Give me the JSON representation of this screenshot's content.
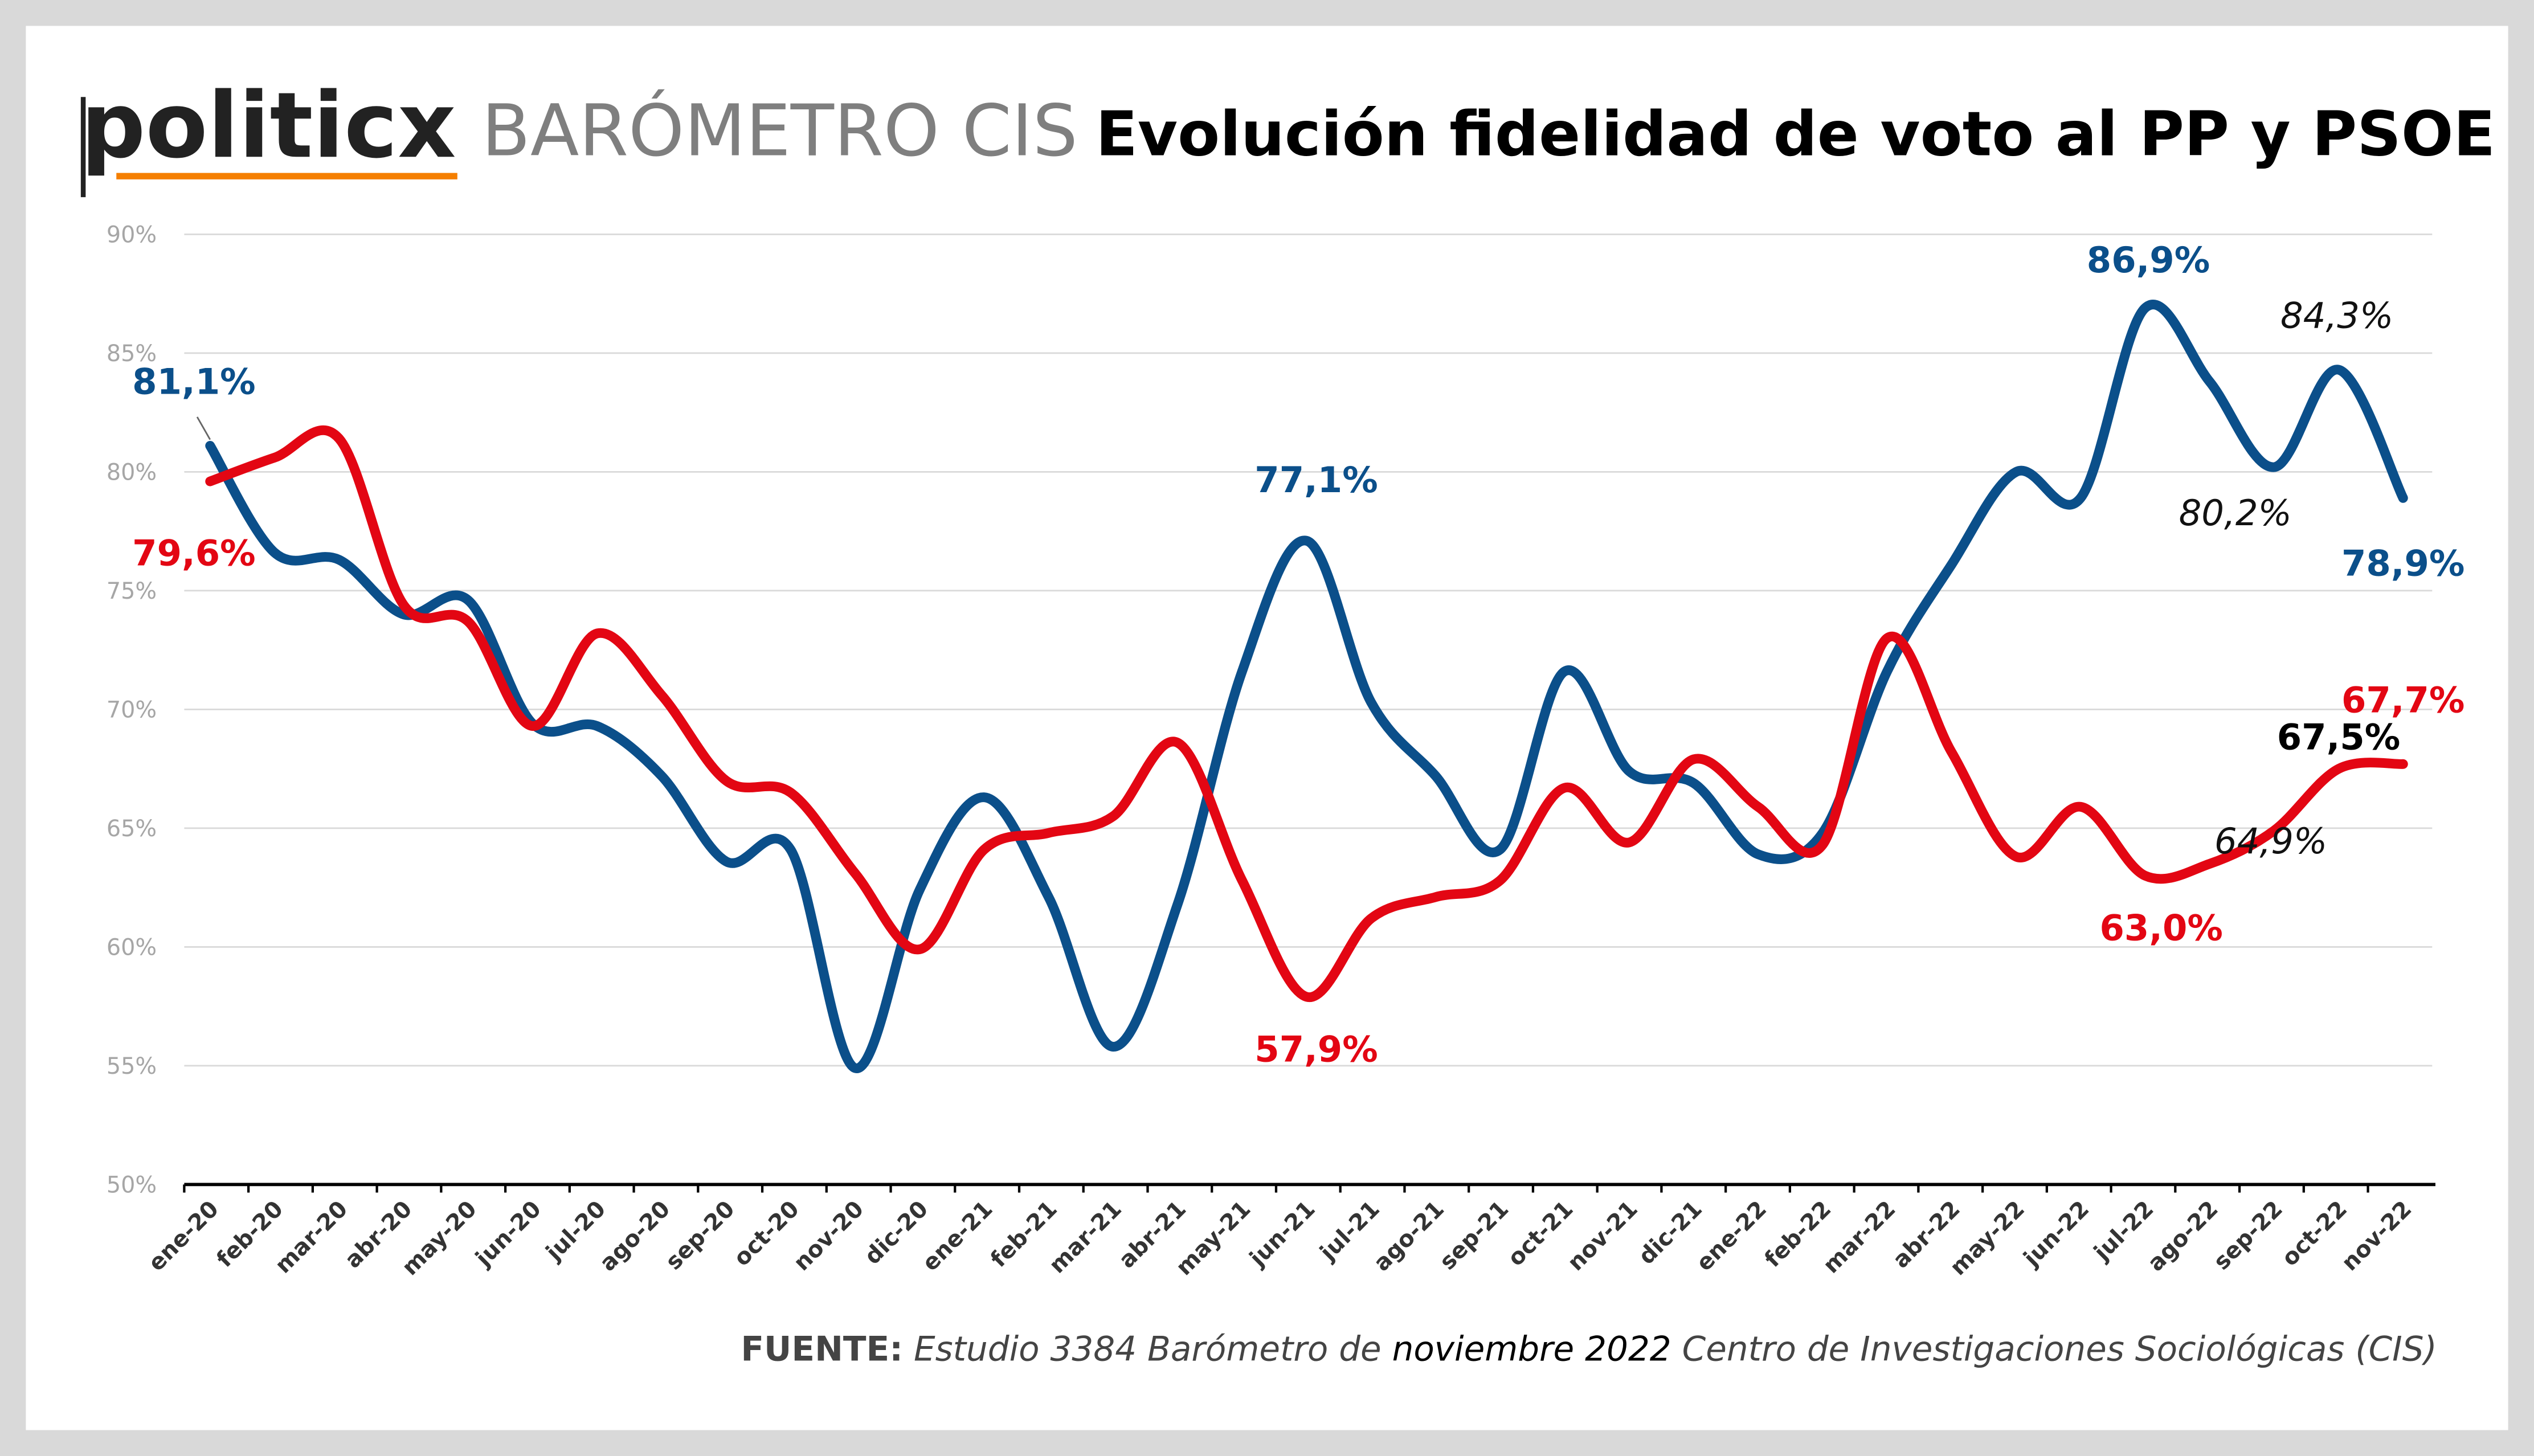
{
  "header": {
    "logo": "politicx",
    "subtitle": "BARÓMETRO CIS",
    "title": "Evolución fidelidad de voto al PP y PSOE"
  },
  "footer": {
    "label": "FUENTE:",
    "text_a": " Estudio 3384 Barómetro de ",
    "text_b": "noviembre 2022",
    "text_c": " Centro de Investigaciones Sociológicas (CIS)"
  },
  "colors": {
    "pp": "#0b4f8a",
    "psoe": "#e30613",
    "accent": "#f57f00"
  },
  "chart_data": {
    "type": "line",
    "title": "Evolución fidelidad de voto al PP y PSOE",
    "xlabel": "",
    "ylabel": "",
    "ylim": [
      50,
      90
    ],
    "yticks": [
      "50%",
      "55%",
      "60%",
      "65%",
      "70%",
      "75%",
      "80%",
      "85%",
      "90%"
    ],
    "grid": true,
    "categories": [
      "ene-20",
      "feb-20",
      "mar-20",
      "abr-20",
      "may-20",
      "jun-20",
      "jul-20",
      "ago-20",
      "sep-20",
      "oct-20",
      "nov-20",
      "dic-20",
      "ene-21",
      "feb-21",
      "mar-21",
      "abr-21",
      "may-21",
      "jun-21",
      "jul-21",
      "ago-21",
      "sep-21",
      "oct-21",
      "nov-21",
      "dic-21",
      "ene-22",
      "feb-22",
      "mar-22",
      "abr-22",
      "may-22",
      "jun-22",
      "jul-22",
      "ago-22",
      "sep-22",
      "oct-22",
      "nov-22"
    ],
    "series": [
      {
        "name": "PP",
        "color": "#0b4f8a",
        "values": [
          81.1,
          76.6,
          76.3,
          74.0,
          74.6,
          69.4,
          69.3,
          67.2,
          63.6,
          64.1,
          54.9,
          62.4,
          66.3,
          62.1,
          55.8,
          61.8,
          71.6,
          77.1,
          70.3,
          67.2,
          64.1,
          71.6,
          67.4,
          66.9,
          63.9,
          64.8,
          71.6,
          76.1,
          80.0,
          78.9,
          86.9,
          83.8,
          80.2,
          84.3,
          78.9
        ]
      },
      {
        "name": "PSOE",
        "color": "#e30613",
        "values": [
          79.6,
          80.6,
          81.4,
          74.4,
          73.7,
          69.3,
          73.2,
          70.6,
          67.0,
          66.5,
          63.1,
          59.9,
          64.1,
          64.8,
          65.5,
          68.6,
          62.8,
          57.9,
          61.2,
          62.1,
          62.8,
          66.7,
          64.4,
          67.9,
          65.9,
          64.3,
          73.0,
          68.2,
          63.8,
          65.9,
          63.0,
          63.5,
          64.9,
          67.5,
          67.7
        ]
      }
    ],
    "annotations": [
      {
        "text": "81,1%",
        "series": 0,
        "index": 0,
        "style": "blue"
      },
      {
        "text": "79,6%",
        "series": 1,
        "index": 0,
        "style": "red"
      },
      {
        "text": "77,1%",
        "series": 0,
        "index": 17,
        "style": "blue"
      },
      {
        "text": "57,9%",
        "series": 1,
        "index": 17,
        "style": "red"
      },
      {
        "text": "86,9%",
        "series": 0,
        "index": 30,
        "style": "blue"
      },
      {
        "text": "84,3%",
        "series": 0,
        "index": 33,
        "style": "plain"
      },
      {
        "text": "80,2%",
        "series": 0,
        "index": 32,
        "style": "plain"
      },
      {
        "text": "78,9%",
        "series": 0,
        "index": 34,
        "style": "blue"
      },
      {
        "text": "67,7%",
        "series": 1,
        "index": 34,
        "style": "red"
      },
      {
        "text": "67,5%",
        "series": 1,
        "index": 33,
        "style": "boldblack"
      },
      {
        "text": "64,9%",
        "series": 1,
        "index": 32,
        "style": "plain"
      },
      {
        "text": "63,0%",
        "series": 1,
        "index": 30,
        "style": "red"
      }
    ]
  }
}
